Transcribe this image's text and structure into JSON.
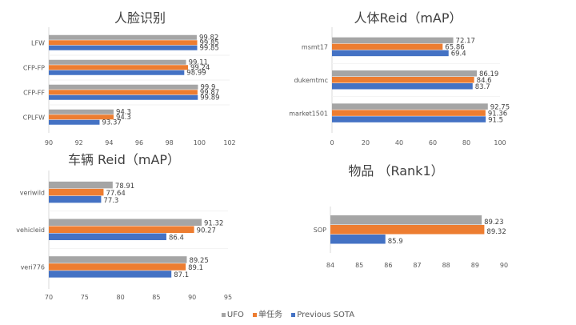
{
  "legend": {
    "items": [
      {
        "name": "UFO",
        "color": "#a5a5a5"
      },
      {
        "name": "单任务",
        "color": "#ed7d31"
      },
      {
        "name": "Previous SOTA",
        "color": "#4472c4"
      }
    ]
  },
  "chart_data": [
    {
      "type": "bar",
      "orientation": "horizontal",
      "title": "人脸识别",
      "categories": [
        "LFW",
        "CFP-FP",
        "CFP-FF",
        "CPLFW"
      ],
      "series": [
        {
          "name": "UFO",
          "values": [
            99.82,
            99.11,
            99.9,
            94.3
          ]
        },
        {
          "name": "单任务",
          "values": [
            99.85,
            99.24,
            99.87,
            94.3
          ]
        },
        {
          "name": "Previous SOTA",
          "values": [
            99.85,
            98.99,
            99.89,
            93.37
          ]
        }
      ],
      "xlim": [
        90,
        102
      ],
      "xticks": [
        90,
        92,
        94,
        96,
        98,
        100,
        102
      ],
      "grid": false
    },
    {
      "type": "bar",
      "orientation": "horizontal",
      "title": "人体Reid（mAP）",
      "categories": [
        "msmt17",
        "dukemtmc",
        "market1501"
      ],
      "series": [
        {
          "name": "UFO",
          "values": [
            72.17,
            86.19,
            92.75
          ]
        },
        {
          "name": "单任务",
          "values": [
            65.86,
            84.6,
            91.36
          ]
        },
        {
          "name": "Previous SOTA",
          "values": [
            69.4,
            83.7,
            91.5
          ]
        }
      ],
      "xlim": [
        0,
        100
      ],
      "xticks": [
        0,
        20,
        40,
        60,
        80,
        100
      ],
      "grid": false
    },
    {
      "type": "bar",
      "orientation": "horizontal",
      "title": "车辆 Reid（mAP）",
      "categories": [
        "veriwild",
        "vehicleid",
        "veri776"
      ],
      "series": [
        {
          "name": "UFO",
          "values": [
            78.91,
            91.32,
            89.25
          ]
        },
        {
          "name": "单任务",
          "values": [
            77.64,
            90.27,
            89.1
          ]
        },
        {
          "name": "Previous SOTA",
          "values": [
            77.3,
            86.4,
            87.1
          ]
        }
      ],
      "xlim": [
        70,
        95
      ],
      "xticks": [
        70,
        75,
        80,
        85,
        90,
        95
      ],
      "grid": false
    },
    {
      "type": "bar",
      "orientation": "horizontal",
      "title": "物品 （Rank1）",
      "categories": [
        "SOP"
      ],
      "series": [
        {
          "name": "UFO",
          "values": [
            89.23
          ]
        },
        {
          "name": "单任务",
          "values": [
            89.32
          ]
        },
        {
          "name": "Previous SOTA",
          "values": [
            85.9
          ]
        }
      ],
      "xlim": [
        84,
        90
      ],
      "xticks": [
        84,
        85,
        86,
        87,
        88,
        89,
        90
      ],
      "grid": false
    }
  ]
}
